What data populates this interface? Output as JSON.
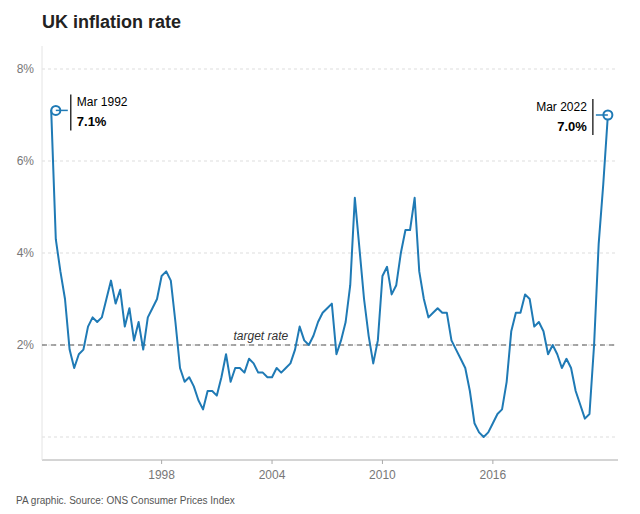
{
  "chart_data": {
    "type": "line",
    "title": "UK inflation rate",
    "source": "PA graphic. Source: ONS Consumer Prices Index",
    "color": "#1f7ab5",
    "grid": true,
    "xlim": [
      1991.5,
      2022.8
    ],
    "ylim": [
      -0.5,
      8.5
    ],
    "xticks": [
      1998,
      2004,
      2010,
      2016
    ],
    "yticks": [
      {
        "value": 0,
        "label": null
      },
      {
        "value": 2,
        "label": "2%"
      },
      {
        "value": 4,
        "label": "4%"
      },
      {
        "value": 6,
        "label": "6%"
      },
      {
        "value": 8,
        "label": "8%"
      }
    ],
    "target_rate": 2.0,
    "target_rate_label": "target rate",
    "annotations": [
      {
        "x": 1992.25,
        "y": 7.1,
        "label": "Mar 1992",
        "value_label": "7.1%"
      },
      {
        "x": 2022.25,
        "y": 7.0,
        "label": "Mar 2022",
        "value_label": "7.0%"
      }
    ],
    "x": [
      1992.0,
      1992.25,
      1992.5,
      1992.75,
      1993.0,
      1993.25,
      1993.5,
      1993.75,
      1994.0,
      1994.25,
      1994.5,
      1994.75,
      1995.0,
      1995.25,
      1995.5,
      1995.75,
      1996.0,
      1996.25,
      1996.5,
      1996.75,
      1997.0,
      1997.25,
      1997.5,
      1997.75,
      1998.0,
      1998.25,
      1998.5,
      1998.75,
      1999.0,
      1999.25,
      1999.5,
      1999.75,
      2000.0,
      2000.25,
      2000.5,
      2000.75,
      2001.0,
      2001.25,
      2001.5,
      2001.75,
      2002.0,
      2002.25,
      2002.5,
      2002.75,
      2003.0,
      2003.25,
      2003.5,
      2003.75,
      2004.0,
      2004.25,
      2004.5,
      2004.75,
      2005.0,
      2005.25,
      2005.5,
      2005.75,
      2006.0,
      2006.25,
      2006.5,
      2006.75,
      2007.0,
      2007.25,
      2007.5,
      2007.75,
      2008.0,
      2008.25,
      2008.5,
      2008.75,
      2009.0,
      2009.25,
      2009.5,
      2009.75,
      2010.0,
      2010.25,
      2010.5,
      2010.75,
      2011.0,
      2011.25,
      2011.5,
      2011.75,
      2012.0,
      2012.25,
      2012.5,
      2012.75,
      2013.0,
      2013.25,
      2013.5,
      2013.75,
      2014.0,
      2014.25,
      2014.5,
      2014.75,
      2015.0,
      2015.25,
      2015.5,
      2015.75,
      2016.0,
      2016.25,
      2016.5,
      2016.75,
      2017.0,
      2017.25,
      2017.5,
      2017.75,
      2018.0,
      2018.25,
      2018.5,
      2018.75,
      2019.0,
      2019.25,
      2019.5,
      2019.75,
      2020.0,
      2020.25,
      2020.5,
      2020.75,
      2021.0,
      2021.25,
      2021.5,
      2021.75,
      2022.0,
      2022.25
    ],
    "values": [
      7.1,
      4.3,
      3.6,
      3.0,
      1.9,
      1.5,
      1.8,
      1.9,
      2.4,
      2.6,
      2.5,
      2.6,
      3.0,
      3.4,
      2.9,
      3.2,
      2.4,
      2.8,
      2.1,
      2.5,
      1.9,
      2.6,
      2.8,
      3.0,
      3.5,
      3.6,
      3.4,
      2.5,
      1.5,
      1.2,
      1.3,
      1.1,
      0.8,
      0.6,
      1.0,
      1.0,
      0.9,
      1.3,
      1.8,
      1.2,
      1.5,
      1.5,
      1.4,
      1.7,
      1.6,
      1.4,
      1.4,
      1.3,
      1.3,
      1.5,
      1.4,
      1.5,
      1.6,
      1.9,
      2.4,
      2.1,
      2.0,
      2.2,
      2.5,
      2.7,
      2.8,
      2.9,
      1.8,
      2.1,
      2.5,
      3.3,
      5.2,
      4.1,
      3.0,
      2.2,
      1.6,
      2.1,
      3.5,
      3.7,
      3.1,
      3.3,
      4.0,
      4.5,
      4.5,
      5.2,
      3.6,
      3.0,
      2.6,
      2.7,
      2.8,
      2.7,
      2.7,
      2.1,
      1.9,
      1.7,
      1.5,
      1.0,
      0.3,
      0.1,
      0.0,
      0.1,
      0.3,
      0.5,
      0.6,
      1.2,
      2.3,
      2.7,
      2.7,
      3.1,
      3.0,
      2.4,
      2.5,
      2.3,
      1.8,
      2.0,
      1.8,
      1.5,
      1.7,
      1.5,
      1.0,
      0.7,
      0.4,
      0.5,
      2.0,
      4.2,
      5.5,
      7.0
    ]
  }
}
